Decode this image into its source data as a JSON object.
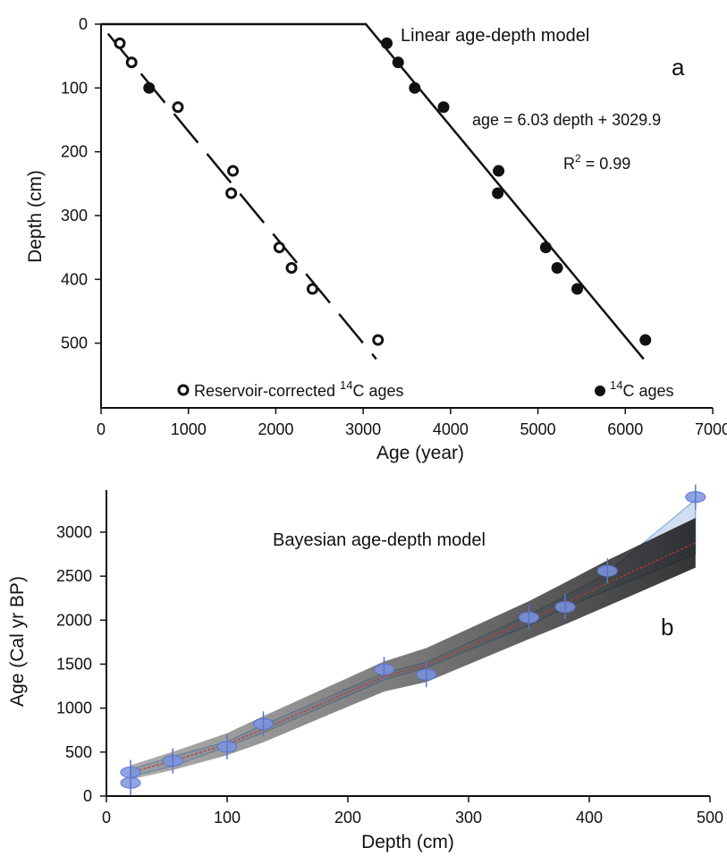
{
  "chart_data": [
    {
      "panel": "a",
      "type": "scatter",
      "title": "Linear age-depth model",
      "xlabel": "Age (year)",
      "ylabel": "Depth (cm)",
      "xlim": [
        0,
        7000
      ],
      "ylim": [
        0,
        600
      ],
      "y_inverted": true,
      "x_ticks": [
        "0",
        "1000",
        "2000",
        "3000",
        "4000",
        "5000",
        "6000",
        "7000"
      ],
      "y_ticks": [
        "0",
        "100",
        "200",
        "300",
        "400",
        "500"
      ],
      "equation": "age = 6.03 depth + 3029.9",
      "r2_label": "R",
      "r2_value": " = 0.99",
      "legend_position": "bottom",
      "series": [
        {
          "name": "Reservoir-corrected ",
          "name_sup": "14",
          "name_suffix": "C  ages",
          "marker": "hollow-circle",
          "x": [
            215,
            350,
            880,
            1510,
            1490,
            2040,
            2180,
            2420,
            3170
          ],
          "y": [
            30,
            60,
            130,
            230,
            265,
            350,
            382,
            415,
            495
          ]
        },
        {
          "name": "",
          "name_sup": "14",
          "name_suffix": "C ages",
          "marker": "filled-circle",
          "x": [
            550,
            3270,
            3400,
            3590,
            3920,
            4550,
            4540,
            5090,
            5220,
            5450,
            6230
          ],
          "y": [
            100,
            30,
            60,
            100,
            130,
            230,
            265,
            350,
            382,
            415,
            495
          ]
        }
      ],
      "fit_line": {
        "style": "solid",
        "x": [
          0,
          3030,
          6210
        ],
        "y": [
          0,
          0,
          525
        ]
      },
      "dashed_line": {
        "style": "dashed",
        "x": [
          80,
          3150
        ],
        "y": [
          15,
          525
        ]
      }
    },
    {
      "panel": "b",
      "type": "area",
      "title": "Bayesian age-depth model",
      "xlabel": "Depth (cm)",
      "ylabel": "Age (Cal yr BP)",
      "xlim": [
        0,
        500
      ],
      "ylim": [
        0,
        3500
      ],
      "x_ticks": [
        "0",
        "100",
        "200",
        "300",
        "400",
        "500"
      ],
      "y_ticks": [
        "0",
        "500",
        "1000",
        "1500",
        "2000",
        "2500",
        "3000"
      ],
      "median_line": {
        "x": [
          20,
          55,
          100,
          130,
          230,
          265,
          350,
          380,
          415,
          488
        ],
        "y": [
          270,
          400,
          590,
          760,
          1360,
          1490,
          2000,
          2190,
          2420,
          2880
        ]
      },
      "envelope": {
        "x": [
          20,
          55,
          100,
          130,
          230,
          265,
          350,
          380,
          415,
          488
        ],
        "upper": [
          300,
          450,
          620,
          810,
          1400,
          1520,
          2060,
          2270,
          2540,
          3370
        ],
        "lower": [
          220,
          340,
          560,
          720,
          1320,
          1460,
          1940,
          2140,
          2340,
          2750
        ]
      },
      "dates": [
        {
          "depth": 20,
          "age": 270
        },
        {
          "depth": 20,
          "age": 150
        },
        {
          "depth": 55,
          "age": 400
        },
        {
          "depth": 100,
          "age": 560
        },
        {
          "depth": 130,
          "age": 820
        },
        {
          "depth": 230,
          "age": 1440
        },
        {
          "depth": 265,
          "age": 1380
        },
        {
          "depth": 350,
          "age": 2030
        },
        {
          "depth": 380,
          "age": 2150
        },
        {
          "depth": 415,
          "age": 2560
        },
        {
          "depth": 488,
          "age": 3400
        }
      ]
    }
  ],
  "colors": {
    "axis": "#111111",
    "points": "#111111",
    "date_fill": "#7d94e0",
    "date_stroke": "#5a74cf",
    "envelope_fill": "#c9d8ee",
    "envelope_stroke": "#6fa0d8",
    "median": "#c0392b"
  }
}
